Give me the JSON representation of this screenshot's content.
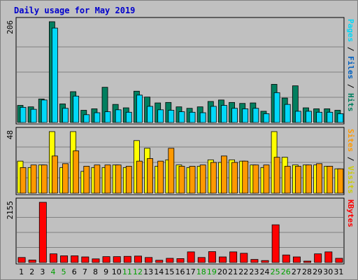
{
  "chart_data": {
    "type": "bar",
    "title": "Daily usage for May 2019",
    "colors": {
      "background": "#c0c0c0",
      "plot": "#c0c0c0",
      "title": "#0000cc",
      "grid": "#808080",
      "hits": "#007f5f",
      "files": "#00d8f8",
      "visits": "#ffff00",
      "sites": "#ff9900",
      "kbytes": "#ff0000",
      "weekend_label": "#00a000",
      "label_separator": "#000000"
    },
    "categories": [
      "1",
      "2",
      "3",
      "4",
      "5",
      "6",
      "7",
      "8",
      "9",
      "10",
      "11",
      "12",
      "13",
      "14",
      "15",
      "16",
      "17",
      "18",
      "19",
      "20",
      "21",
      "22",
      "23",
      "24",
      "25",
      "26",
      "27",
      "28",
      "29",
      "30",
      "31"
    ],
    "weekend_days": [
      "4",
      "5",
      "11",
      "12",
      "18",
      "19",
      "25",
      "26"
    ],
    "panels": [
      {
        "id": "hits-files",
        "ymax_label": "206",
        "ymax": 206,
        "side_label_parts": [
          {
            "text": "Pages",
            "color": "#00d8f8"
          },
          {
            "text": " / ",
            "color": "#000000"
          },
          {
            "text": "Files",
            "color": "#0060c0"
          },
          {
            "text": " / ",
            "color": "#000000"
          },
          {
            "text": "Hits",
            "color": "#007f5f"
          }
        ],
        "series": [
          {
            "name": "Hits",
            "values": [
              35,
              32,
              48,
              206,
              38,
              63,
              25,
              28,
              72,
              37,
              30,
              64,
              52,
              40,
              41,
              32,
              29,
              32,
              43,
              46,
              41,
              39,
              40,
              23,
              78,
              50,
              75,
              30,
              28,
              28,
              25
            ]
          },
          {
            "name": "Files",
            "values": [
              31,
              27,
              46,
              193,
              29,
              54,
              16,
              20,
              22,
              26,
              21,
              56,
              33,
              26,
              25,
              22,
              21,
              20,
              33,
              35,
              29,
              28,
              29,
              18,
              61,
              37,
              23,
              23,
              21,
              21,
              18
            ]
          }
        ]
      },
      {
        "id": "visits-sites",
        "ymax_label": "48",
        "ymax": 48,
        "side_label_parts": [
          {
            "text": "Sites",
            "color": "#ff9900"
          },
          {
            "text": " / ",
            "color": "#000000"
          },
          {
            "text": "Visits",
            "color": "#cccc00"
          }
        ],
        "series": [
          {
            "name": "Visits",
            "values": [
              25,
              20,
              22,
              48,
              20,
              48,
              17,
              20,
              20,
              22,
              20,
              41,
              35,
              21,
              26,
              22,
              20,
              21,
              26,
              24,
              26,
              25,
              22,
              20,
              48,
              28,
              22,
              22,
              22,
              21,
              19
            ]
          },
          {
            "name": "Sites",
            "values": [
              20,
              22,
              22,
              29,
              23,
              33,
              21,
              22,
              22,
              22,
              21,
              25,
              27,
              25,
              35,
              21,
              21,
              22,
              24,
              29,
              24,
              25,
              22,
              22,
              28,
              21,
              21,
              22,
              23,
              21,
              19
            ]
          }
        ]
      },
      {
        "id": "kbytes",
        "ymax_label": "2155",
        "ymax": 2155,
        "side_label_parts": [
          {
            "text": "KBytes",
            "color": "#ff0000"
          }
        ],
        "series": [
          {
            "name": "KBytes",
            "values": [
              180,
              90,
              2155,
              310,
              240,
              240,
              200,
              130,
              210,
              210,
              220,
              230,
              180,
              80,
              150,
              140,
              380,
              180,
              390,
              200,
              380,
              330,
              110,
              70,
              1350,
              270,
              200,
              50,
              310,
              380,
              150
            ]
          }
        ]
      }
    ]
  }
}
